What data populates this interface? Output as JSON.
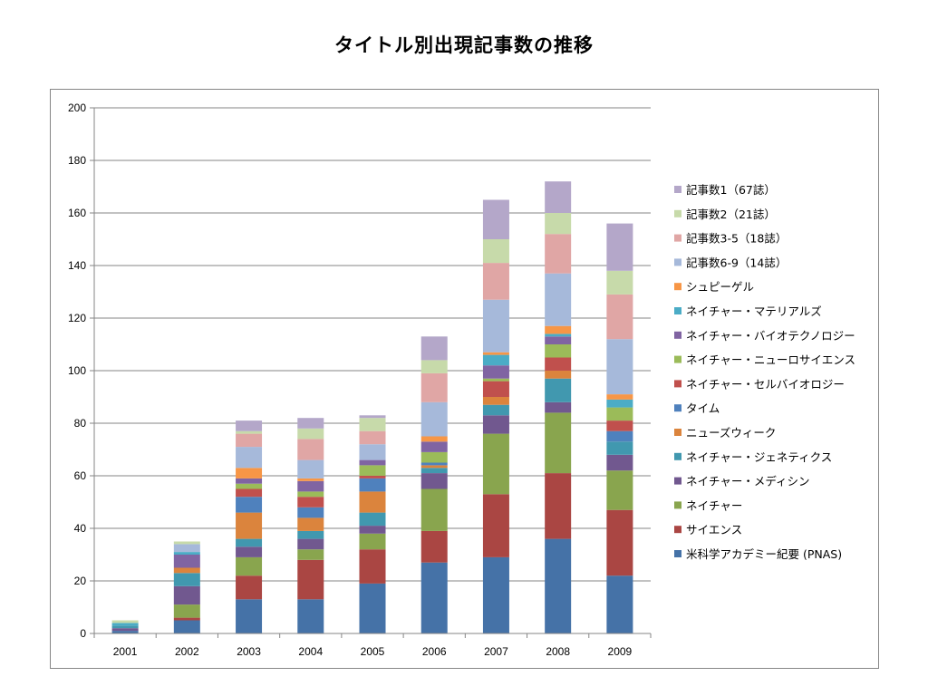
{
  "page": {
    "title": "タイトル別出現記事数の推移"
  },
  "chart_data": {
    "type": "bar",
    "stacked": true,
    "title": "タイトル別出現記事数の推移",
    "xlabel": "",
    "ylabel": "",
    "ylim": [
      0,
      200
    ],
    "yticks": [
      0,
      20,
      40,
      60,
      80,
      100,
      120,
      140,
      160,
      180,
      200
    ],
    "grid": true,
    "legend_position": "right",
    "categories": [
      "2001",
      "2002",
      "2003",
      "2004",
      "2005",
      "2006",
      "2007",
      "2008",
      "2009"
    ],
    "series": [
      {
        "name": "米科学アカデミー紀要 (PNAS)",
        "color": "#4572A7",
        "values": [
          1,
          5,
          13,
          13,
          19,
          27,
          29,
          36,
          22
        ]
      },
      {
        "name": "サイエンス",
        "color": "#AA4643",
        "values": [
          0,
          1,
          9,
          15,
          13,
          12,
          24,
          25,
          25
        ]
      },
      {
        "name": "ネイチャー",
        "color": "#89A54E",
        "values": [
          0,
          5,
          7,
          4,
          6,
          16,
          23,
          23,
          15
        ]
      },
      {
        "name": "ネイチャー・メディシン",
        "color": "#71588F",
        "values": [
          1,
          7,
          4,
          4,
          3,
          6,
          7,
          4,
          6
        ]
      },
      {
        "name": "ネイチャー・ジェネティクス",
        "color": "#4198AF",
        "values": [
          1,
          5,
          3,
          3,
          5,
          2,
          4,
          9,
          5
        ]
      },
      {
        "name": "ニューズウィーク",
        "color": "#DB843D",
        "values": [
          0,
          2,
          10,
          5,
          8,
          1,
          3,
          3,
          0
        ]
      },
      {
        "name": "タイム",
        "color": "#4F81BD",
        "values": [
          0,
          0,
          6,
          4,
          5,
          1,
          0,
          0,
          4
        ]
      },
      {
        "name": "ネイチャー・セルバイオロジー",
        "color": "#C0504D",
        "values": [
          0,
          0,
          3,
          4,
          1,
          0,
          6,
          5,
          4
        ]
      },
      {
        "name": "ネイチャー・ニューロサイエンス",
        "color": "#9BBB59",
        "values": [
          0,
          0,
          2,
          2,
          4,
          4,
          1,
          5,
          5
        ]
      },
      {
        "name": "ネイチャー・バイオテクノロジー",
        "color": "#8064A2",
        "values": [
          0,
          5,
          2,
          4,
          2,
          4,
          5,
          3,
          0
        ]
      },
      {
        "name": "ネイチャー・マテリアルズ",
        "color": "#4BACC6",
        "values": [
          1,
          1,
          0,
          0,
          0,
          0,
          4,
          1,
          3
        ]
      },
      {
        "name": "シュピーゲル",
        "color": "#F79646",
        "values": [
          0,
          0,
          4,
          1,
          0,
          2,
          1,
          3,
          2
        ]
      },
      {
        "name": "記事数6-9（14誌）",
        "color": "#A6B9DA",
        "values": [
          0,
          3,
          8,
          7,
          6,
          13,
          20,
          20,
          21
        ]
      },
      {
        "name": "記事数3-5（18誌）",
        "color": "#E0A6A5",
        "values": [
          0,
          0,
          5,
          8,
          5,
          11,
          14,
          15,
          17
        ]
      },
      {
        "name": "記事数2（21誌）",
        "color": "#C7DAAA",
        "values": [
          1,
          1,
          1,
          4,
          5,
          5,
          9,
          8,
          9
        ]
      },
      {
        "name": "記事数1（67誌）",
        "color": "#B4A7C9",
        "values": [
          0,
          0,
          4,
          4,
          1,
          9,
          15,
          12,
          18
        ]
      }
    ]
  }
}
